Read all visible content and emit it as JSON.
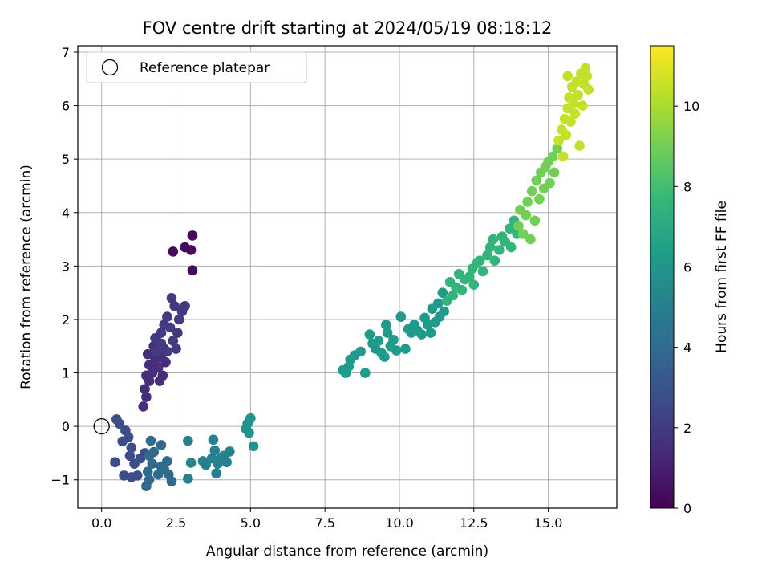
{
  "chart_data": {
    "type": "scatter",
    "title": "FOV centre drift starting at 2024/05/19 08:18:12",
    "xlabel": "Angular distance from reference (arcmin)",
    "ylabel": "Rotation from reference (arcmin)",
    "xlim": [
      -0.8,
      17.3
    ],
    "ylim": [
      -1.53,
      7.12
    ],
    "xticks": [
      0.0,
      2.5,
      5.0,
      7.5,
      10.0,
      12.5,
      15.0
    ],
    "xtick_labels": [
      "0.0",
      "2.5",
      "5.0",
      "7.5",
      "10.0",
      "12.5",
      "15.0"
    ],
    "yticks": [
      -1,
      0,
      1,
      2,
      3,
      4,
      5,
      6,
      7
    ],
    "ytick_labels": [
      "−1",
      "0",
      "1",
      "2",
      "3",
      "4",
      "5",
      "6",
      "7"
    ],
    "grid": true,
    "legend": {
      "placement": "top-left",
      "entries": [
        "Reference platepar"
      ]
    },
    "reference_point": {
      "x": 0.0,
      "y": 0.0,
      "marker": "hollow-circle",
      "color": "#000000"
    },
    "colorbar": {
      "label": "Hours from first FF file",
      "range": [
        0,
        11.5
      ],
      "ticks": [
        0,
        2,
        4,
        6,
        8,
        10
      ],
      "tick_labels": [
        "0",
        "2",
        "4",
        "6",
        "8",
        "10"
      ],
      "colormap": "viridis"
    },
    "colormap_stops": [
      "#440154",
      "#482878",
      "#3e4989",
      "#31688e",
      "#26828e",
      "#1f9e89",
      "#35b779",
      "#6ece58",
      "#b5de2b",
      "#fde725"
    ],
    "point_groups": [
      {
        "hours": 0.3,
        "points": [
          [
            2.4,
            3.27
          ],
          [
            2.8,
            3.35
          ],
          [
            3.0,
            3.3
          ],
          [
            3.05,
            3.57
          ],
          [
            3.05,
            2.92
          ]
        ]
      },
      {
        "hours": 1.5,
        "points": [
          [
            1.4,
            0.37
          ],
          [
            1.5,
            0.55
          ],
          [
            1.45,
            0.7
          ],
          [
            1.6,
            0.85
          ],
          [
            1.5,
            0.95
          ],
          [
            1.7,
            1.0
          ],
          [
            1.6,
            1.15
          ],
          [
            1.8,
            1.25
          ],
          [
            1.55,
            1.35
          ],
          [
            1.75,
            1.5
          ],
          [
            1.9,
            1.1
          ],
          [
            2.0,
            1.3
          ],
          [
            1.85,
            1.6
          ],
          [
            2.1,
            1.45
          ],
          [
            1.95,
            0.85
          ],
          [
            2.05,
            0.95
          ],
          [
            2.15,
            1.2
          ]
        ]
      },
      {
        "hours": 2.0,
        "points": [
          [
            1.8,
            1.65
          ],
          [
            2.0,
            1.75
          ],
          [
            2.1,
            1.9
          ],
          [
            2.2,
            2.05
          ],
          [
            2.3,
            1.85
          ],
          [
            2.4,
            1.6
          ],
          [
            2.5,
            1.45
          ],
          [
            2.35,
            2.4
          ],
          [
            2.6,
            2.0
          ],
          [
            2.7,
            2.15
          ],
          [
            2.8,
            2.25
          ],
          [
            2.55,
            1.75
          ],
          [
            2.45,
            2.25
          ],
          [
            2.0,
            1.55
          ],
          [
            2.2,
            1.4
          ],
          [
            1.85,
            1.4
          ]
        ]
      },
      {
        "hours": 2.7,
        "points": [
          [
            0.5,
            0.13
          ],
          [
            0.6,
            0.05
          ],
          [
            0.8,
            -0.08
          ],
          [
            0.7,
            -0.28
          ],
          [
            0.9,
            -0.2
          ],
          [
            1.0,
            -0.4
          ],
          [
            0.95,
            -0.55
          ],
          [
            0.45,
            -0.67
          ],
          [
            0.75,
            -0.92
          ],
          [
            1.0,
            -0.95
          ],
          [
            1.2,
            -0.92
          ],
          [
            1.3,
            -0.6
          ],
          [
            1.45,
            -0.5
          ],
          [
            1.1,
            -0.7
          ]
        ]
      },
      {
        "hours": 4.0,
        "points": [
          [
            1.6,
            -0.55
          ],
          [
            1.7,
            -0.7
          ],
          [
            1.55,
            -0.85
          ],
          [
            1.6,
            -1.0
          ],
          [
            1.5,
            -1.12
          ],
          [
            1.75,
            -0.48
          ],
          [
            1.65,
            -0.27
          ],
          [
            2.0,
            -0.75
          ],
          [
            2.1,
            -0.8
          ],
          [
            2.0,
            -0.35
          ],
          [
            2.2,
            -0.65
          ],
          [
            2.25,
            -0.9
          ],
          [
            2.35,
            -1.03
          ],
          [
            1.9,
            -0.9
          ]
        ]
      },
      {
        "hours": 5.0,
        "points": [
          [
            2.9,
            -0.27
          ],
          [
            3.0,
            -0.68
          ],
          [
            2.9,
            -0.98
          ],
          [
            3.4,
            -0.65
          ],
          [
            3.5,
            -0.72
          ],
          [
            3.7,
            -0.6
          ],
          [
            3.75,
            -0.25
          ],
          [
            3.8,
            -0.45
          ],
          [
            3.85,
            -0.88
          ],
          [
            4.0,
            -0.6
          ],
          [
            4.1,
            -0.55
          ],
          [
            4.2,
            -0.67
          ],
          [
            4.3,
            -0.47
          ],
          [
            3.9,
            -0.7
          ]
        ]
      },
      {
        "hours": 6.0,
        "points": [
          [
            4.9,
            0.05
          ],
          [
            5.0,
            0.15
          ],
          [
            4.95,
            -0.12
          ],
          [
            5.1,
            -0.37
          ],
          [
            4.85,
            -0.05
          ]
        ]
      },
      {
        "hours": 6.2,
        "points": [
          [
            8.1,
            1.05
          ],
          [
            8.2,
            1.0
          ],
          [
            8.3,
            1.12
          ],
          [
            8.35,
            1.25
          ],
          [
            8.5,
            1.33
          ],
          [
            8.7,
            1.4
          ],
          [
            8.85,
            1.0
          ],
          [
            9.0,
            1.72
          ],
          [
            9.1,
            1.55
          ],
          [
            9.2,
            1.45
          ],
          [
            9.3,
            1.6
          ],
          [
            9.4,
            1.37
          ],
          [
            9.5,
            1.3
          ],
          [
            9.55,
            1.9
          ],
          [
            9.6,
            1.75
          ],
          [
            9.7,
            1.5
          ],
          [
            9.8,
            1.62
          ],
          [
            9.9,
            1.42
          ],
          [
            10.05,
            2.05
          ],
          [
            10.2,
            1.45
          ],
          [
            10.3,
            1.82
          ],
          [
            10.4,
            1.75
          ],
          [
            10.5,
            1.9
          ],
          [
            10.6,
            1.8
          ],
          [
            10.75,
            1.72
          ],
          [
            10.85,
            2.03
          ],
          [
            10.95,
            1.9
          ],
          [
            11.05,
            1.75
          ],
          [
            11.1,
            2.2
          ],
          [
            11.2,
            1.95
          ],
          [
            11.3,
            2.3
          ],
          [
            11.35,
            2.05
          ],
          [
            11.45,
            2.5
          ],
          [
            11.5,
            2.15
          ]
        ]
      },
      {
        "hours": 7.5,
        "points": [
          [
            11.6,
            2.35
          ],
          [
            11.7,
            2.7
          ],
          [
            11.8,
            2.45
          ],
          [
            11.9,
            2.6
          ],
          [
            12.0,
            2.85
          ],
          [
            12.1,
            2.55
          ],
          [
            12.2,
            2.75
          ],
          [
            12.35,
            2.8
          ],
          [
            12.45,
            2.95
          ],
          [
            12.5,
            2.65
          ],
          [
            12.6,
            3.05
          ],
          [
            12.7,
            3.1
          ],
          [
            12.8,
            2.9
          ],
          [
            12.95,
            3.2
          ],
          [
            13.05,
            3.35
          ],
          [
            13.15,
            3.5
          ],
          [
            13.2,
            3.1
          ],
          [
            13.35,
            3.3
          ],
          [
            13.45,
            3.55
          ],
          [
            13.55,
            3.45
          ],
          [
            13.7,
            3.7
          ],
          [
            13.75,
            3.35
          ],
          [
            13.85,
            3.85
          ],
          [
            13.95,
            3.6
          ]
        ]
      },
      {
        "hours": 9.0,
        "points": [
          [
            14.0,
            3.75
          ],
          [
            14.05,
            4.05
          ],
          [
            14.15,
            3.6
          ],
          [
            14.25,
            3.95
          ],
          [
            14.3,
            4.2
          ],
          [
            14.4,
            3.5
          ],
          [
            14.45,
            4.4
          ],
          [
            14.55,
            3.85
          ],
          [
            14.6,
            4.6
          ],
          [
            14.7,
            4.25
          ],
          [
            14.75,
            4.75
          ],
          [
            14.85,
            4.45
          ],
          [
            14.9,
            4.85
          ],
          [
            15.0,
            4.95
          ],
          [
            15.05,
            4.55
          ],
          [
            15.15,
            5.05
          ],
          [
            15.2,
            4.75
          ],
          [
            15.3,
            5.2
          ]
        ]
      },
      {
        "hours": 10.5,
        "points": [
          [
            15.35,
            5.35
          ],
          [
            15.45,
            5.55
          ],
          [
            15.5,
            5.05
          ],
          [
            15.55,
            5.75
          ],
          [
            15.6,
            5.45
          ],
          [
            15.65,
            5.95
          ],
          [
            15.7,
            6.15
          ],
          [
            15.75,
            5.7
          ],
          [
            15.8,
            6.35
          ],
          [
            15.85,
            6.05
          ],
          [
            15.9,
            5.85
          ],
          [
            15.95,
            6.45
          ],
          [
            16.0,
            6.2
          ],
          [
            16.1,
            6.6
          ],
          [
            16.05,
            5.25
          ],
          [
            16.2,
            6.4
          ],
          [
            16.25,
            6.7
          ],
          [
            16.3,
            6.55
          ],
          [
            16.35,
            6.3
          ],
          [
            15.65,
            6.55
          ],
          [
            16.15,
            6.0
          ]
        ]
      }
    ]
  }
}
